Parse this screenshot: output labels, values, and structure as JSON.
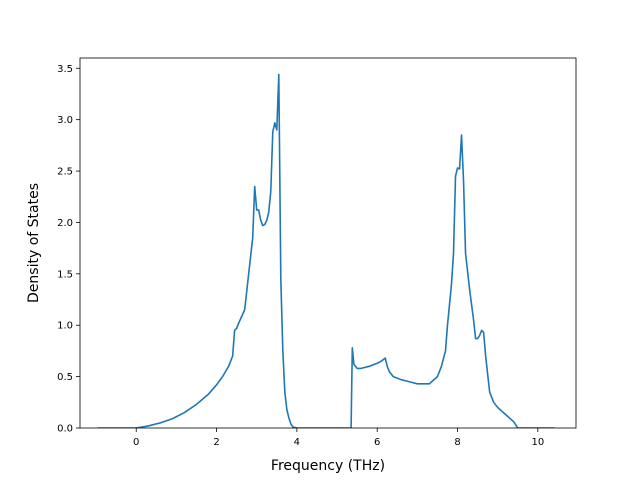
{
  "chart_data": {
    "type": "line",
    "title": "",
    "xlabel": "Frequency (THz)",
    "ylabel": "Density of States",
    "xlim": [
      -1.4,
      10.95
    ],
    "ylim": [
      0,
      3.6
    ],
    "xticks": [
      0,
      2,
      4,
      6,
      8,
      10
    ],
    "yticks": [
      0.0,
      0.5,
      1.0,
      1.5,
      2.0,
      2.5,
      3.0,
      3.5
    ],
    "xtick_labels": [
      "0",
      "2",
      "4",
      "6",
      "8",
      "10"
    ],
    "ytick_labels": [
      "0.0",
      "0.5",
      "1.0",
      "1.5",
      "2.0",
      "2.5",
      "3.0",
      "3.5"
    ],
    "grid": false,
    "line_color": "#1f77b4",
    "series": [
      {
        "x": [
          -0.95,
          -0.5,
          0.0,
          0.3,
          0.6,
          0.9,
          1.2,
          1.5,
          1.8,
          2.0,
          2.15,
          2.3,
          2.4,
          2.45,
          2.5,
          2.55,
          2.62,
          2.7,
          2.8,
          2.9,
          2.95,
          3.0,
          3.05,
          3.1,
          3.15,
          3.2,
          3.25,
          3.3,
          3.35,
          3.4,
          3.45,
          3.5,
          3.55,
          3.6,
          3.65,
          3.7,
          3.75,
          3.8,
          3.85,
          3.9,
          3.95,
          4.0,
          4.2,
          4.5,
          5.0,
          5.35,
          5.38,
          5.42,
          5.5,
          5.6,
          5.8,
          6.0,
          6.1,
          6.2,
          6.25,
          6.3,
          6.4,
          6.6,
          6.8,
          7.0,
          7.3,
          7.5,
          7.6,
          7.7,
          7.75,
          7.8,
          7.85,
          7.9,
          7.95,
          8.0,
          8.05,
          8.1,
          8.15,
          8.2,
          8.3,
          8.4,
          8.45,
          8.5,
          8.55,
          8.6,
          8.65,
          8.7,
          8.8,
          8.9,
          9.0,
          9.2,
          9.4,
          9.5,
          9.6,
          10.0,
          10.4
        ],
        "y": [
          0.0,
          0.0,
          0.0,
          0.02,
          0.05,
          0.09,
          0.15,
          0.23,
          0.33,
          0.42,
          0.5,
          0.6,
          0.7,
          0.95,
          0.97,
          1.02,
          1.08,
          1.15,
          1.5,
          1.85,
          2.35,
          2.12,
          2.12,
          2.02,
          1.97,
          1.98,
          2.02,
          2.1,
          2.3,
          2.88,
          2.97,
          2.9,
          3.44,
          1.45,
          0.75,
          0.35,
          0.18,
          0.1,
          0.04,
          0.01,
          0.005,
          0.0,
          0.0,
          0.0,
          0.0,
          0.0,
          0.78,
          0.62,
          0.58,
          0.58,
          0.6,
          0.63,
          0.65,
          0.68,
          0.6,
          0.55,
          0.5,
          0.47,
          0.45,
          0.43,
          0.43,
          0.5,
          0.6,
          0.75,
          1.0,
          1.2,
          1.4,
          1.7,
          2.45,
          2.53,
          2.52,
          2.85,
          2.4,
          1.7,
          1.35,
          1.05,
          0.87,
          0.87,
          0.9,
          0.95,
          0.93,
          0.7,
          0.35,
          0.25,
          0.2,
          0.13,
          0.06,
          0.0,
          0.0,
          0.0,
          0.0
        ]
      }
    ]
  }
}
